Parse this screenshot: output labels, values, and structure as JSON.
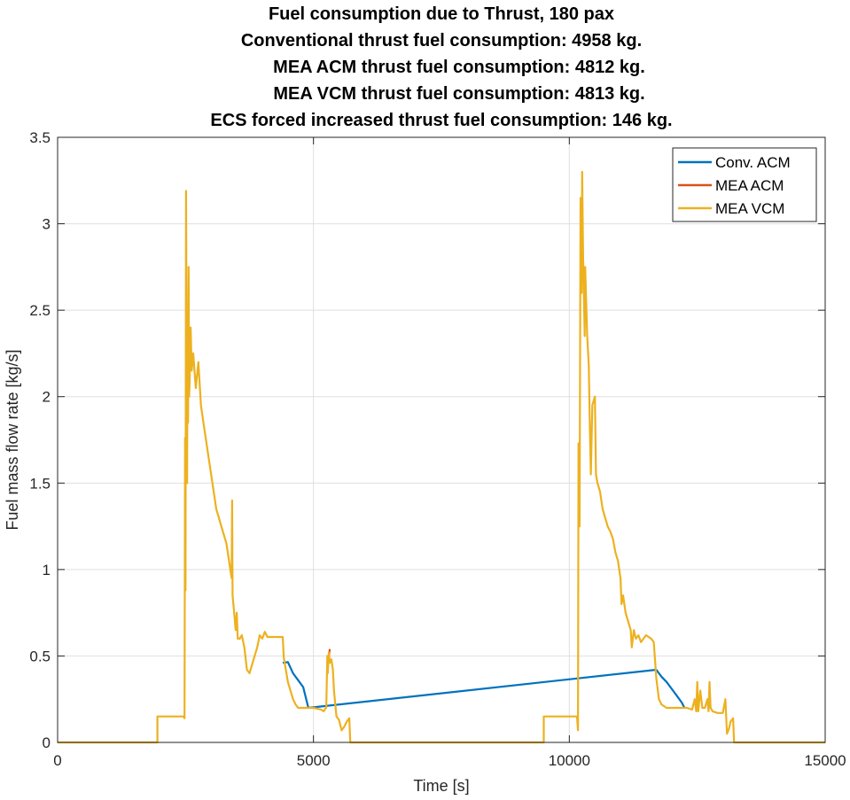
{
  "chart_data": {
    "type": "line",
    "title_lines": [
      "Fuel consumption due to Thrust, 180 pax",
      "Conventional thrust fuel consumption: 4958 kg.",
      "MEA ACM thrust fuel consumption: 4812 kg.",
      "MEA VCM thrust fuel consumption: 4813 kg.",
      "ECS forced increased thrust fuel consumption: 146 kg."
    ],
    "xlabel": "Time [s]",
    "ylabel": "Fuel mass flow rate [kg/s]",
    "xlim": [
      0,
      15000
    ],
    "ylim": [
      0,
      3.5
    ],
    "xticks": [
      0,
      5000,
      10000,
      15000
    ],
    "yticks": [
      0,
      0.5,
      1,
      1.5,
      2,
      2.5,
      3,
      3.5
    ],
    "grid": true,
    "legend_position": "top-right",
    "series": [
      {
        "name": "Conv. ACM",
        "color": "#0072BD",
        "points": [
          [
            4400,
            0.46
          ],
          [
            4500,
            0.465
          ],
          [
            4600,
            0.4
          ],
          [
            4700,
            0.36
          ],
          [
            4800,
            0.32
          ],
          [
            4850,
            0.26
          ],
          [
            4900,
            0.2
          ],
          [
            11700,
            0.42
          ],
          [
            11800,
            0.38
          ],
          [
            11900,
            0.35
          ],
          [
            12000,
            0.31
          ],
          [
            12100,
            0.27
          ],
          [
            12200,
            0.23
          ],
          [
            12250,
            0.2
          ]
        ]
      },
      {
        "name": "MEA ACM",
        "color": "#D95319",
        "points": [
          [
            5300,
            0.5
          ],
          [
            5320,
            0.54
          ]
        ]
      },
      {
        "name": "MEA VCM",
        "color": "#EDB120",
        "points": [
          [
            0,
            0
          ],
          [
            1950,
            0
          ],
          [
            1950,
            0.15
          ],
          [
            2450,
            0.15
          ],
          [
            2480,
            0.14
          ],
          [
            2490,
            1.76
          ],
          [
            2500,
            0.88
          ],
          [
            2510,
            3.19
          ],
          [
            2530,
            1.5
          ],
          [
            2540,
            2.4
          ],
          [
            2550,
            1.85
          ],
          [
            2560,
            2.75
          ],
          [
            2570,
            2.0
          ],
          [
            2580,
            2.1
          ],
          [
            2600,
            2.4
          ],
          [
            2620,
            2.15
          ],
          [
            2650,
            2.25
          ],
          [
            2700,
            2.05
          ],
          [
            2750,
            2.2
          ],
          [
            2800,
            1.95
          ],
          [
            2850,
            1.85
          ],
          [
            2900,
            1.75
          ],
          [
            2950,
            1.65
          ],
          [
            3000,
            1.55
          ],
          [
            3050,
            1.45
          ],
          [
            3100,
            1.35
          ],
          [
            3150,
            1.3
          ],
          [
            3200,
            1.25
          ],
          [
            3250,
            1.2
          ],
          [
            3300,
            1.15
          ],
          [
            3350,
            1.05
          ],
          [
            3400,
            0.95
          ],
          [
            3410,
            1.4
          ],
          [
            3420,
            0.85
          ],
          [
            3450,
            0.75
          ],
          [
            3480,
            0.65
          ],
          [
            3500,
            0.75
          ],
          [
            3520,
            0.6
          ],
          [
            3560,
            0.6
          ],
          [
            3600,
            0.62
          ],
          [
            3650,
            0.55
          ],
          [
            3700,
            0.42
          ],
          [
            3750,
            0.4
          ],
          [
            3800,
            0.45
          ],
          [
            3850,
            0.5
          ],
          [
            3900,
            0.55
          ],
          [
            3950,
            0.62
          ],
          [
            4000,
            0.6
          ],
          [
            4050,
            0.64
          ],
          [
            4100,
            0.61
          ],
          [
            4200,
            0.61
          ],
          [
            4300,
            0.61
          ],
          [
            4400,
            0.61
          ],
          [
            4420,
            0.49
          ],
          [
            4500,
            0.35
          ],
          [
            4550,
            0.3
          ],
          [
            4600,
            0.25
          ],
          [
            4650,
            0.22
          ],
          [
            4700,
            0.2
          ],
          [
            4800,
            0.2
          ],
          [
            5000,
            0.2
          ],
          [
            5150,
            0.19
          ],
          [
            5200,
            0.18
          ],
          [
            5240,
            0.2
          ],
          [
            5250,
            0.2
          ],
          [
            5270,
            0.5
          ],
          [
            5280,
            0.4
          ],
          [
            5300,
            0.52
          ],
          [
            5320,
            0.46
          ],
          [
            5350,
            0.48
          ],
          [
            5380,
            0.42
          ],
          [
            5400,
            0.3
          ],
          [
            5450,
            0.15
          ],
          [
            5500,
            0.13
          ],
          [
            5550,
            0.07
          ],
          [
            5600,
            0.09
          ],
          [
            5650,
            0.12
          ],
          [
            5700,
            0.14
          ],
          [
            5720,
            0
          ],
          [
            9500,
            0
          ],
          [
            9500,
            0.15
          ],
          [
            10150,
            0.15
          ],
          [
            10170,
            0.07
          ],
          [
            10180,
            1.73
          ],
          [
            10200,
            1.25
          ],
          [
            10220,
            3.15
          ],
          [
            10240,
            2.6
          ],
          [
            10250,
            3.3
          ],
          [
            10270,
            2.8
          ],
          [
            10300,
            2.35
          ],
          [
            10310,
            2.75
          ],
          [
            10350,
            2.35
          ],
          [
            10380,
            2.18
          ],
          [
            10400,
            1.85
          ],
          [
            10420,
            1.55
          ],
          [
            10450,
            1.95
          ],
          [
            10500,
            2.0
          ],
          [
            10520,
            1.55
          ],
          [
            10550,
            1.5
          ],
          [
            10600,
            1.45
          ],
          [
            10650,
            1.35
          ],
          [
            10700,
            1.3
          ],
          [
            10750,
            1.25
          ],
          [
            10800,
            1.22
          ],
          [
            10850,
            1.18
          ],
          [
            10900,
            1.1
          ],
          [
            10950,
            1.05
          ],
          [
            11000,
            0.95
          ],
          [
            11020,
            0.8
          ],
          [
            11050,
            0.85
          ],
          [
            11100,
            0.75
          ],
          [
            11150,
            0.7
          ],
          [
            11200,
            0.65
          ],
          [
            11220,
            0.55
          ],
          [
            11260,
            0.65
          ],
          [
            11300,
            0.6
          ],
          [
            11350,
            0.62
          ],
          [
            11400,
            0.58
          ],
          [
            11450,
            0.6
          ],
          [
            11500,
            0.62
          ],
          [
            11600,
            0.6
          ],
          [
            11650,
            0.58
          ],
          [
            11700,
            0.37
          ],
          [
            11750,
            0.25
          ],
          [
            11800,
            0.22
          ],
          [
            11850,
            0.21
          ],
          [
            11900,
            0.2
          ],
          [
            12000,
            0.2
          ],
          [
            12300,
            0.2
          ],
          [
            12400,
            0.19
          ],
          [
            12450,
            0.25
          ],
          [
            12480,
            0.18
          ],
          [
            12500,
            0.35
          ],
          [
            12520,
            0.18
          ],
          [
            12560,
            0.3
          ],
          [
            12600,
            0.2
          ],
          [
            12650,
            0.2
          ],
          [
            12700,
            0.25
          ],
          [
            12720,
            0.18
          ],
          [
            12740,
            0.35
          ],
          [
            12760,
            0.2
          ],
          [
            12800,
            0.18
          ],
          [
            12900,
            0.17
          ],
          [
            13000,
            0.17
          ],
          [
            13050,
            0.25
          ],
          [
            13080,
            0.05
          ],
          [
            13120,
            0.08
          ],
          [
            13150,
            0.12
          ],
          [
            13200,
            0.14
          ],
          [
            13220,
            0
          ],
          [
            15000,
            0
          ]
        ]
      }
    ]
  }
}
